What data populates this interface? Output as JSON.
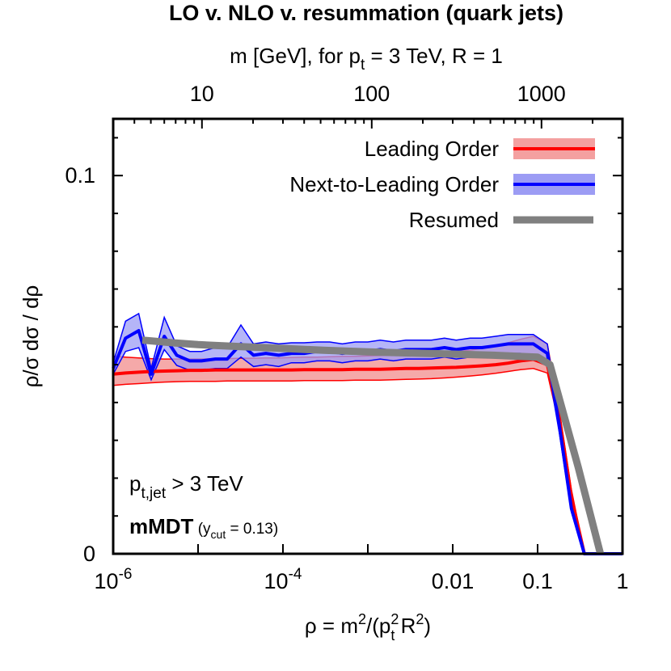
{
  "chart_data": {
    "type": "line",
    "title": "LO v. NLO v. resummation (quark jets)",
    "top_axis": {
      "label": "m [GeV], for p_t = 3 TeV, R = 1",
      "label_parts": {
        "a": "m [GeV], for p",
        "sub": "t",
        "b": " = 3 TeV, R = 1"
      },
      "scale": "log",
      "ticks": [
        10,
        100,
        1000
      ],
      "tick_labels": [
        "10",
        "100",
        "1000"
      ]
    },
    "xlabel": "ρ = m²/(p_t² R²)",
    "xlabel_parts": {
      "a": "ρ = m",
      "sup1": "2",
      "b": "/(p",
      "sup2": "2",
      "sub2": "t",
      "c": " R",
      "sup3": "2",
      "d": ")"
    },
    "ylabel": "ρ/σ dσ / dρ",
    "x_scale": "log",
    "xlim": [
      1e-06,
      1
    ],
    "ylim": [
      0,
      0.115
    ],
    "x_ticks": [
      {
        "value": 1e-06,
        "base": "10",
        "exp": "-6"
      },
      {
        "value": 0.0001,
        "base": "10",
        "exp": "-4"
      },
      {
        "value": 0.01,
        "base": "0.01",
        "exp": ""
      },
      {
        "value": 0.1,
        "base": "0.1",
        "exp": ""
      },
      {
        "value": 1,
        "base": "1",
        "exp": ""
      }
    ],
    "y_ticks": [
      {
        "value": 0,
        "label": "0"
      },
      {
        "value": 0.1,
        "label": "0.1"
      }
    ],
    "legend": {
      "position": "top-right",
      "entries": [
        {
          "name": "Leading Order",
          "color": "#ff0000",
          "band": "#f4a0a0"
        },
        {
          "name": "Next-to-Leading Order",
          "color": "#0000ff",
          "band": "#9c9cf4"
        },
        {
          "name": "Resumed",
          "color": "#808080",
          "band": ""
        }
      ]
    },
    "annotations": {
      "line1": {
        "a": "p",
        "sub": "t,jet",
        "b": " > 3 TeV"
      },
      "line2": {
        "a": "mMDT",
        "b": " (y",
        "sub": "cut",
        "c": " = 0.13)"
      }
    },
    "series": [
      {
        "name": "Leading Order",
        "color": "#ff0000",
        "band_color": "#f4a0a0",
        "x": [
          1e-06,
          1.4e-06,
          2e-06,
          2.8e-06,
          4e-06,
          5.6e-06,
          8e-06,
          1.1e-05,
          1.6e-05,
          2.2e-05,
          3.2e-05,
          4.5e-05,
          6.3e-05,
          8.9e-05,
          0.000126,
          0.000178,
          0.000251,
          0.000355,
          0.0005,
          0.00071,
          0.001,
          0.0014,
          0.002,
          0.0028,
          0.004,
          0.0056,
          0.008,
          0.011,
          0.016,
          0.022,
          0.032,
          0.045,
          0.063,
          0.089,
          0.13,
          0.18,
          0.25,
          0.355,
          0.5,
          0.71,
          1
        ],
        "y": [
          0.0475,
          0.0478,
          0.048,
          0.0482,
          0.0483,
          0.0484,
          0.0485,
          0.0485,
          0.0486,
          0.0486,
          0.0486,
          0.0486,
          0.0486,
          0.0486,
          0.0486,
          0.0487,
          0.0487,
          0.0487,
          0.0487,
          0.0488,
          0.0488,
          0.0488,
          0.0489,
          0.049,
          0.049,
          0.0491,
          0.0492,
          0.0493,
          0.0495,
          0.0497,
          0.05,
          0.0504,
          0.051,
          0.0514,
          0.05,
          0.036,
          0.015,
          0,
          0,
          0,
          0
        ],
        "y_low": [
          0.0445,
          0.0448,
          0.045,
          0.0452,
          0.0454,
          0.0455,
          0.0456,
          0.0456,
          0.0456,
          0.0457,
          0.0457,
          0.0457,
          0.0457,
          0.0457,
          0.0457,
          0.0458,
          0.0458,
          0.0458,
          0.0458,
          0.0459,
          0.0459,
          0.0459,
          0.046,
          0.0461,
          0.0462,
          0.0463,
          0.0465,
          0.0467,
          0.047,
          0.0473,
          0.0477,
          0.0482,
          0.0487,
          0.049,
          0.0478,
          0.034,
          0.013,
          0,
          0,
          0,
          0
        ],
        "y_high": [
          0.0522,
          0.052,
          0.0518,
          0.0516,
          0.0515,
          0.0515,
          0.0515,
          0.0515,
          0.0516,
          0.0516,
          0.0517,
          0.0517,
          0.0518,
          0.0518,
          0.0519,
          0.052,
          0.052,
          0.0521,
          0.0522,
          0.0522,
          0.0523,
          0.0524,
          0.0525,
          0.0527,
          0.0528,
          0.053,
          0.0532,
          0.0535,
          0.0538,
          0.0543,
          0.055,
          0.0558,
          0.0567,
          0.0575,
          0.0555,
          0.038,
          0.017,
          0,
          0,
          0,
          0
        ]
      },
      {
        "name": "Next-to-Leading Order",
        "color": "#0000ff",
        "band_color": "#9c9cf4",
        "x": [
          1e-06,
          1.4e-06,
          2e-06,
          2.8e-06,
          4e-06,
          5.6e-06,
          8e-06,
          1.1e-05,
          1.6e-05,
          2.2e-05,
          3.2e-05,
          4.5e-05,
          6.3e-05,
          8.9e-05,
          0.000126,
          0.000178,
          0.000251,
          0.000355,
          0.0005,
          0.00071,
          0.001,
          0.0014,
          0.002,
          0.0028,
          0.004,
          0.0056,
          0.008,
          0.011,
          0.016,
          0.022,
          0.032,
          0.045,
          0.063,
          0.089,
          0.13,
          0.18,
          0.25,
          0.355,
          0.5,
          0.71,
          1
        ],
        "y": [
          0.049,
          0.057,
          0.059,
          0.0475,
          0.0575,
          0.0525,
          0.051,
          0.051,
          0.0515,
          0.0515,
          0.0555,
          0.0525,
          0.053,
          0.0525,
          0.053,
          0.053,
          0.0535,
          0.0535,
          0.053,
          0.0535,
          0.0535,
          0.054,
          0.0535,
          0.054,
          0.054,
          0.054,
          0.0545,
          0.054,
          0.0545,
          0.0545,
          0.055,
          0.0555,
          0.0555,
          0.0555,
          0.053,
          0.034,
          0.012,
          0,
          0,
          0,
          0
        ],
        "y_low": [
          0.0475,
          0.0535,
          0.0545,
          0.046,
          0.054,
          0.0498,
          0.0485,
          0.0485,
          0.049,
          0.049,
          0.052,
          0.0495,
          0.05,
          0.0495,
          0.0505,
          0.0505,
          0.051,
          0.051,
          0.0505,
          0.051,
          0.051,
          0.0515,
          0.051,
          0.0515,
          0.0515,
          0.0515,
          0.052,
          0.0515,
          0.052,
          0.052,
          0.0525,
          0.053,
          0.053,
          0.0525,
          0.0505,
          0.032,
          0.011,
          0,
          0,
          0,
          0
        ],
        "y_high": [
          0.0505,
          0.0615,
          0.0635,
          0.049,
          0.0625,
          0.055,
          0.0535,
          0.0535,
          0.0545,
          0.0545,
          0.0605,
          0.0555,
          0.056,
          0.0555,
          0.0558,
          0.0558,
          0.056,
          0.056,
          0.0555,
          0.056,
          0.056,
          0.0565,
          0.056,
          0.0565,
          0.0565,
          0.0565,
          0.057,
          0.0565,
          0.057,
          0.057,
          0.0575,
          0.058,
          0.058,
          0.058,
          0.0555,
          0.036,
          0.013,
          0,
          0,
          0,
          0
        ]
      },
      {
        "name": "Resumed",
        "color": "#808080",
        "x": [
          2.2e-06,
          5e-06,
          1e-05,
          3e-05,
          0.0001,
          0.0003,
          0.001,
          0.003,
          0.01,
          0.03,
          0.1,
          0.14,
          0.3,
          0.55
        ],
        "y": [
          0.0565,
          0.0558,
          0.0553,
          0.0548,
          0.0543,
          0.0538,
          0.0534,
          0.0531,
          0.0528,
          0.0525,
          0.052,
          0.05,
          0.023,
          0
        ]
      }
    ]
  }
}
